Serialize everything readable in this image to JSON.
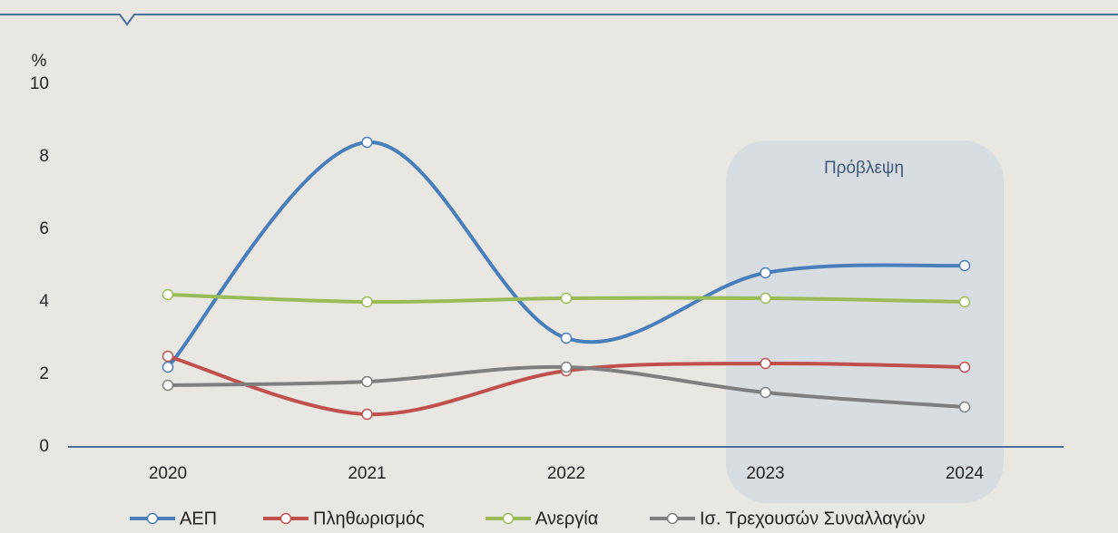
{
  "chart_data": {
    "type": "line",
    "y_label": "%",
    "annotation": "Πρόβλεψη",
    "categories": [
      "2020",
      "2021",
      "2022",
      "2023",
      "2024"
    ],
    "series": [
      {
        "name": "ΑΕΠ",
        "color": "#4a7ebb",
        "values": [
          2.2,
          8.4,
          3.0,
          4.8,
          5.0
        ]
      },
      {
        "name": "Πληθωρισμός",
        "color": "#c0504d",
        "values": [
          2.5,
          0.9,
          2.1,
          2.3,
          2.2
        ]
      },
      {
        "name": "Ανεργία",
        "color": "#9bbb59",
        "values": [
          4.2,
          4.0,
          4.1,
          4.1,
          4.0
        ]
      },
      {
        "name": "Ισ. Τρεχουσών Συναλλαγών",
        "color": "#7f7f7f",
        "values": [
          1.7,
          1.8,
          2.2,
          1.5,
          1.1
        ]
      }
    ],
    "ylim": [
      0,
      10
    ],
    "yticks": [
      0,
      2,
      4,
      6,
      8,
      10
    ],
    "grid": false,
    "smooth": true,
    "legend": "bottom"
  }
}
